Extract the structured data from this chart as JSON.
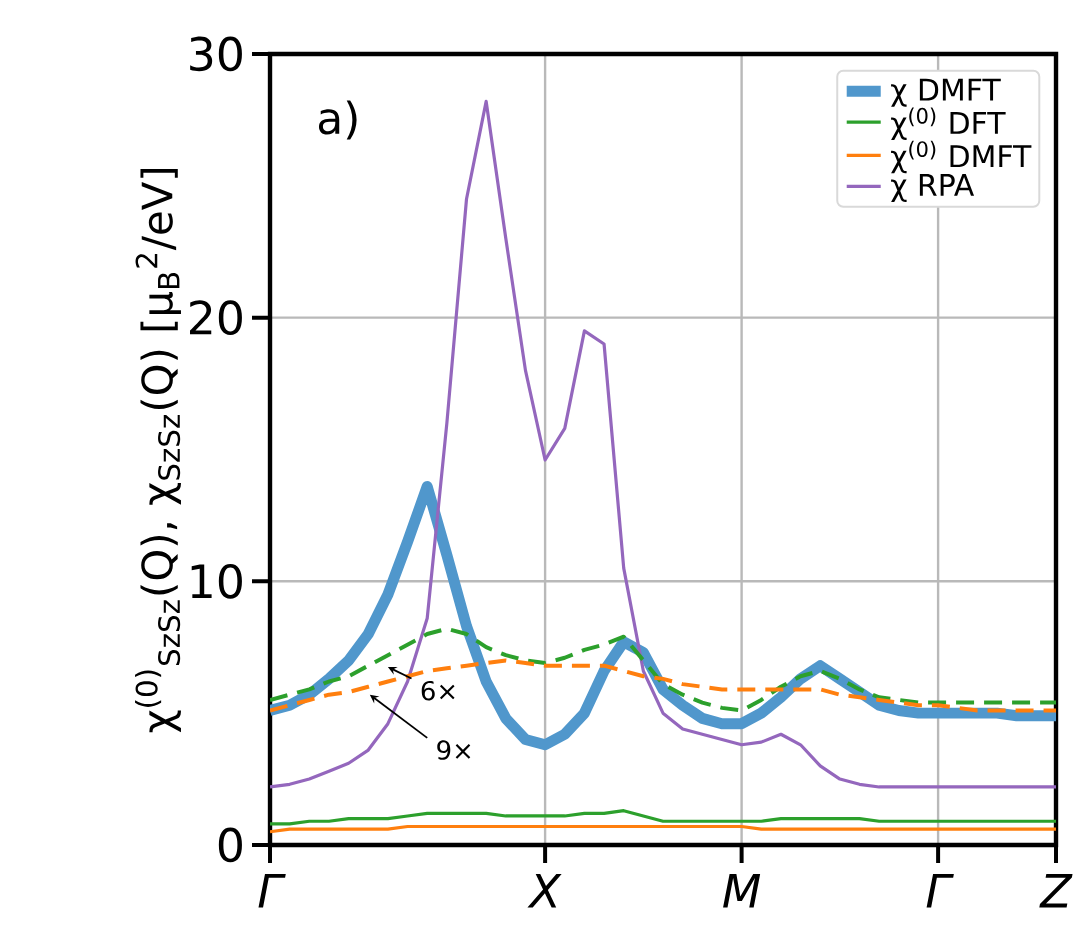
{
  "chart_data": {
    "type": "line",
    "ylabel": "χ$^{(0)}$$_{SzSz}$(Q), χ$_{SzSz}$(Q) [μ$_{B}$$^{2}$/eV]",
    "categories": [
      "Γ",
      null,
      null,
      null,
      null,
      null,
      null,
      null,
      null,
      null,
      null,
      null,
      null,
      null,
      "X",
      null,
      null,
      null,
      null,
      null,
      null,
      null,
      null,
      null,
      "M",
      null,
      null,
      null,
      null,
      null,
      null,
      null,
      null,
      null,
      "Γ",
      null,
      null,
      null,
      null,
      null,
      "Z"
    ],
    "ylim": [
      0,
      30
    ],
    "yticks": [
      0,
      10,
      20,
      30
    ],
    "grid": true,
    "legend": "top right",
    "series": [
      {
        "name": "χ DMFT",
        "color": "#5097cc",
        "line_style": "solid",
        "values": [
          5.1,
          5.3,
          5.7,
          6.3,
          7.0,
          8.0,
          9.5,
          11.5,
          13.6,
          11.0,
          8.3,
          6.2,
          4.8,
          4.0,
          3.8,
          4.2,
          5.0,
          6.6,
          7.7,
          7.3,
          5.9,
          5.3,
          4.8,
          4.6,
          4.6,
          5.0,
          5.6,
          6.3,
          6.8,
          6.3,
          5.8,
          5.3,
          5.1,
          5.0,
          5.0,
          5.0,
          5.0,
          5.0,
          4.9,
          4.9,
          4.9
        ]
      },
      {
        "name": "χ$^{(0)}$ DFT",
        "color": "#2ca02c",
        "line_style": "solid",
        "values": [
          0.8,
          0.8,
          0.9,
          0.9,
          1.0,
          1.0,
          1.0,
          1.1,
          1.2,
          1.2,
          1.2,
          1.2,
          1.1,
          1.1,
          1.1,
          1.1,
          1.2,
          1.2,
          1.3,
          1.1,
          0.9,
          0.9,
          0.9,
          0.9,
          0.9,
          0.9,
          1.0,
          1.0,
          1.0,
          1.0,
          1.0,
          0.9,
          0.9,
          0.9,
          0.9,
          0.9,
          0.9,
          0.9,
          0.9,
          0.9,
          0.9
        ]
      },
      {
        "name": "χ$^{(0)}$ DMFT",
        "color": "#ff7f0e",
        "line_style": "solid",
        "values": [
          0.5,
          0.6,
          0.6,
          0.6,
          0.6,
          0.6,
          0.6,
          0.7,
          0.7,
          0.7,
          0.7,
          0.7,
          0.7,
          0.7,
          0.7,
          0.7,
          0.7,
          0.7,
          0.7,
          0.7,
          0.7,
          0.7,
          0.7,
          0.7,
          0.7,
          0.6,
          0.6,
          0.6,
          0.6,
          0.6,
          0.6,
          0.6,
          0.6,
          0.6,
          0.6,
          0.6,
          0.6,
          0.6,
          0.6,
          0.6,
          0.6
        ]
      },
      {
        "name": "χ RPA",
        "color": "#9467bd",
        "line_style": "solid",
        "values": [
          2.2,
          2.3,
          2.5,
          2.8,
          3.1,
          3.6,
          4.6,
          6.2,
          8.6,
          16.0,
          24.5,
          28.2,
          23.0,
          18.0,
          14.6,
          15.8,
          19.5,
          19.0,
          10.5,
          6.6,
          5.0,
          4.4,
          4.2,
          4.0,
          3.8,
          3.9,
          4.2,
          3.8,
          3.0,
          2.5,
          2.3,
          2.2,
          2.2,
          2.2,
          2.2,
          2.2,
          2.2,
          2.2,
          2.2,
          2.2,
          2.2
        ]
      },
      {
        "color": "#2ca02c",
        "line_style": "dashed",
        "values": [
          5.5,
          5.7,
          5.9,
          6.2,
          6.4,
          6.8,
          7.2,
          7.6,
          8.0,
          8.2,
          8.0,
          7.5,
          7.2,
          7.0,
          6.9,
          7.1,
          7.4,
          7.6,
          7.9,
          7.0,
          6.1,
          5.7,
          5.4,
          5.2,
          5.1,
          5.5,
          6.0,
          6.4,
          6.6,
          6.3,
          5.9,
          5.6,
          5.5,
          5.4,
          5.4,
          5.4,
          5.4,
          5.4,
          5.4,
          5.4,
          5.4
        ]
      },
      {
        "color": "#ff7f0e",
        "line_style": "dashed",
        "values": [
          5.1,
          5.3,
          5.5,
          5.7,
          5.8,
          6.0,
          6.2,
          6.4,
          6.6,
          6.7,
          6.8,
          6.9,
          7.0,
          6.9,
          6.8,
          6.8,
          6.8,
          6.8,
          6.6,
          6.4,
          6.3,
          6.1,
          6.0,
          5.9,
          5.9,
          5.9,
          5.9,
          5.9,
          5.9,
          5.7,
          5.6,
          5.5,
          5.4,
          5.3,
          5.3,
          5.2,
          5.1,
          5.1,
          5.1,
          5.1,
          5.1
        ]
      }
    ],
    "annotations": [
      "a)",
      "6×",
      "9×"
    ]
  }
}
